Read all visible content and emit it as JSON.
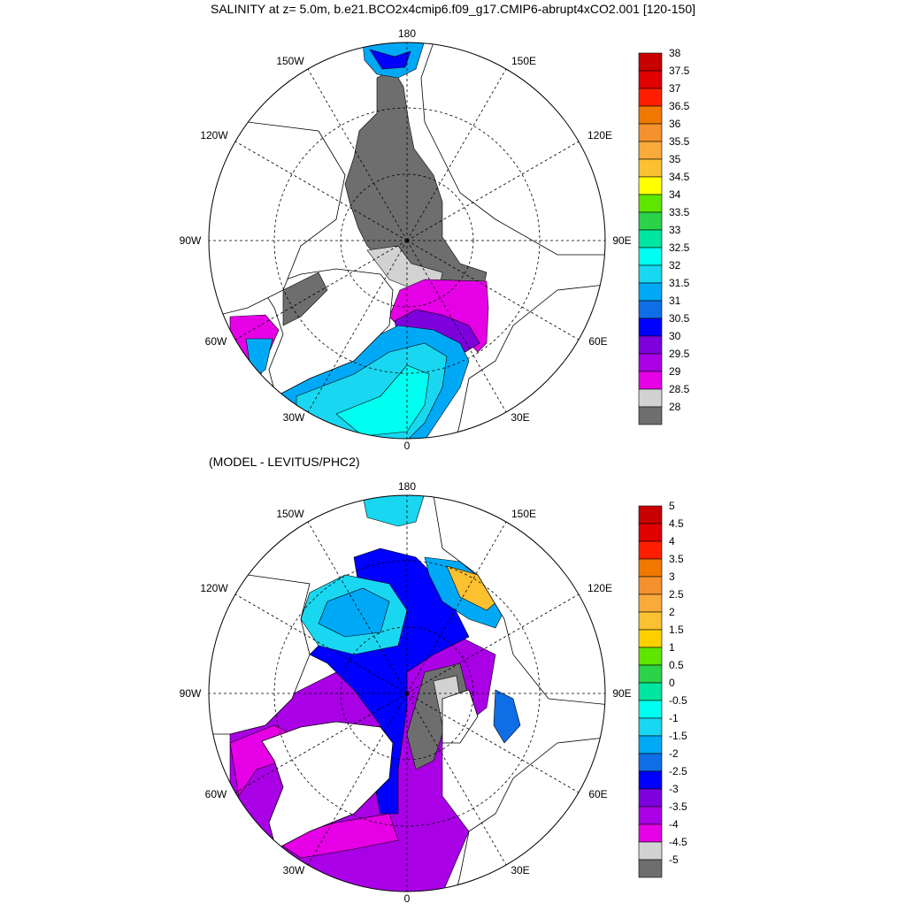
{
  "title": "SALINITY at z=   5.0m, b.e21.BCO2x4cmip6.f09_g17.CMIP6-abrupt4xCO2.001 [120-150]",
  "subtitle": "(MODEL - LEVITUS/PHC2)",
  "chart_data": [
    {
      "type": "heatmap",
      "projection": "north-polar-stereographic",
      "title": "SALINITY at z=   5.0m, b.e21.BCO2x4cmip6.f09_g17.CMIP6-abrupt4xCO2.001 [120-150]",
      "variable": "salinity",
      "lon_labels": [
        "180",
        "150E",
        "120E",
        "90E",
        "60E",
        "30E",
        "0",
        "30W",
        "60W",
        "90W",
        "120W",
        "150W"
      ],
      "colorbar": {
        "labels": [
          "38",
          "37.5",
          "37",
          "36.5",
          "36",
          "35.5",
          "35",
          "34.5",
          "34",
          "33.5",
          "33",
          "32.5",
          "32",
          "31.5",
          "31",
          "30.5",
          "30",
          "29.5",
          "29",
          "28.5",
          "28"
        ],
        "colors": [
          "#c80000",
          "#e10000",
          "#ff1e00",
          "#f07800",
          "#f4912c",
          "#f8aa3a",
          "#fcc130",
          "#ffff00",
          "#5ee600",
          "#2cd24a",
          "#00e6a0",
          "#00fff0",
          "#19d7f0",
          "#00a9f5",
          "#0f6ee6",
          "#0000ff",
          "#7d00dd",
          "#a900e6",
          "#e600e6",
          "#d2d2d2",
          "#6e6e6e"
        ]
      }
    },
    {
      "type": "heatmap",
      "projection": "north-polar-stereographic",
      "title": "(MODEL - LEVITUS/PHC2)",
      "variable": "salinity difference",
      "lon_labels": [
        "180",
        "150E",
        "120E",
        "90E",
        "60E",
        "30E",
        "0",
        "30W",
        "60W",
        "90W",
        "120W",
        "150W"
      ],
      "colorbar": {
        "labels": [
          "5",
          "4.5",
          "4",
          "3.5",
          "3",
          "2.5",
          "2",
          "1.5",
          "1",
          "0.5",
          "0",
          "-0.5",
          "-1",
          "-1.5",
          "-2",
          "-2.5",
          "-3",
          "-3.5",
          "-4",
          "-4.5",
          "-5"
        ],
        "colors": [
          "#c80000",
          "#e10000",
          "#ff1e00",
          "#f07800",
          "#f4912c",
          "#f8aa3a",
          "#fcc130",
          "#ffd000",
          "#5ee600",
          "#2cd24a",
          "#00e6a0",
          "#00fff0",
          "#19d7f0",
          "#00a9f5",
          "#0f6ee6",
          "#0000ff",
          "#7d00dd",
          "#a900e6",
          "#e600e6",
          "#d2d2d2",
          "#6e6e6e"
        ]
      }
    }
  ]
}
